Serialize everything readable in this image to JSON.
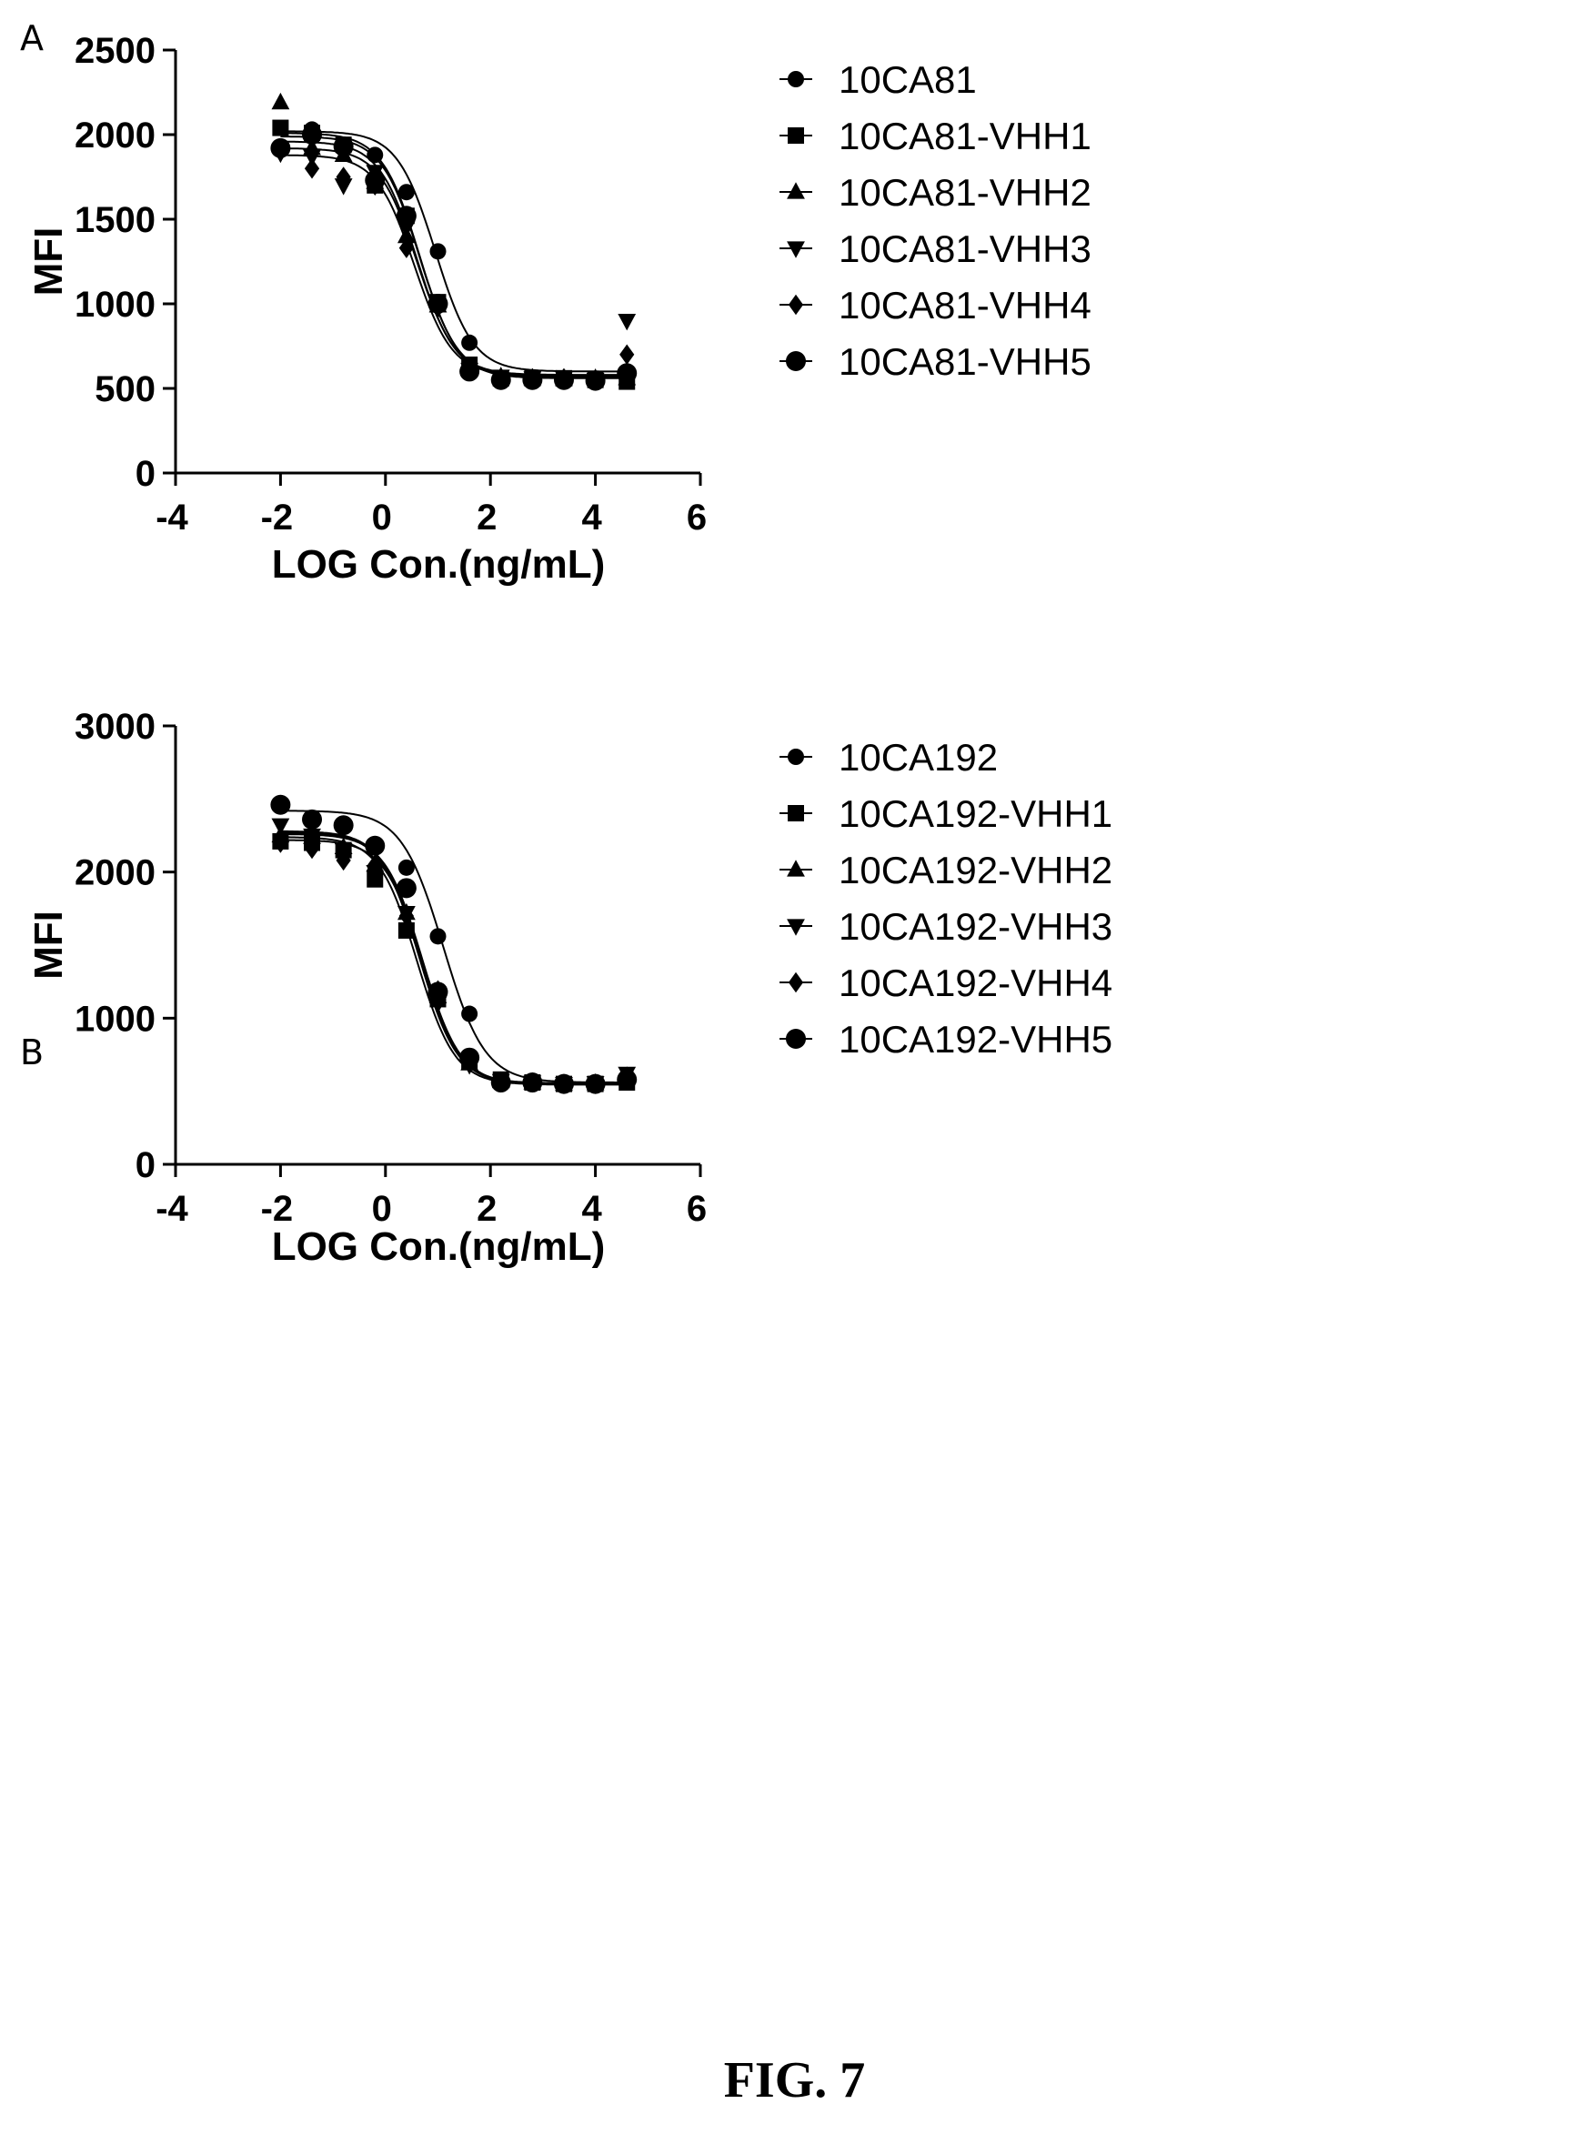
{
  "figure_caption": "FIG. 7",
  "chart_data": [
    {
      "panel": "A",
      "type": "scatter",
      "fit": "four-parameter logistic curves",
      "xlabel": "LOG Con.(ng/mL)",
      "ylabel": "MFI",
      "xlim": [
        -4,
        6
      ],
      "ylim": [
        0,
        2500
      ],
      "xticks": [
        "-4",
        "-2",
        "0",
        "2",
        "4",
        "6"
      ],
      "yticks": [
        "0",
        "500",
        "1000",
        "1500",
        "2000",
        "2500"
      ],
      "grid": false,
      "legend_position": "right",
      "x": [
        -2.0,
        -1.4,
        -0.8,
        -0.2,
        0.4,
        1.0,
        1.6,
        2.2,
        2.8,
        3.4,
        4.0,
        4.6
      ],
      "series": [
        {
          "name": "10CA81",
          "marker": "circle",
          "values": [
            1910,
            2030,
            1940,
            1880,
            1660,
            1310,
            770,
            560,
            555,
            550,
            545,
            580
          ],
          "fit": {
            "top": 2020,
            "bottom": 600,
            "ec50": 0.95,
            "hill": 1.2
          }
        },
        {
          "name": "10CA81-VHH1",
          "marker": "square",
          "values": [
            2040,
            2010,
            1940,
            1700,
            1520,
            1010,
            640,
            560,
            560,
            560,
            550,
            540
          ],
          "fit": {
            "top": 2010,
            "bottom": 560,
            "ec50": 0.65,
            "hill": 1.2
          }
        },
        {
          "name": "10CA81-VHH2",
          "marker": "triangle-up",
          "values": [
            2190,
            1920,
            1880,
            1720,
            1400,
            990,
            620,
            570,
            560,
            555,
            560,
            560
          ],
          "fit": {
            "top": 1960,
            "bottom": 570,
            "ec50": 0.6,
            "hill": 1.2
          }
        },
        {
          "name": "10CA81-VHH3",
          "marker": "triangle-down",
          "values": [
            1890,
            1870,
            1700,
            1780,
            1450,
            970,
            610,
            570,
            560,
            560,
            550,
            900
          ],
          "fit": {
            "top": 1920,
            "bottom": 580,
            "ec50": 0.6,
            "hill": 1.2
          }
        },
        {
          "name": "10CA81-VHH4",
          "marker": "diamond",
          "values": [
            1900,
            1800,
            1750,
            1700,
            1330,
            980,
            610,
            560,
            560,
            560,
            550,
            700
          ],
          "fit": {
            "top": 1880,
            "bottom": 575,
            "ec50": 0.55,
            "hill": 1.2
          }
        },
        {
          "name": "10CA81-VHH5",
          "marker": "circle",
          "values": [
            1920,
            2000,
            1930,
            1730,
            1520,
            1000,
            600,
            550,
            550,
            550,
            545,
            590
          ],
          "fit": {
            "top": 1990,
            "bottom": 565,
            "ec50": 0.65,
            "hill": 1.2
          }
        }
      ]
    },
    {
      "panel": "B",
      "type": "scatter",
      "fit": "four-parameter logistic curves",
      "xlabel": "LOG Con.(ng/mL)",
      "ylabel": "MFI",
      "xlim": [
        -4,
        6
      ],
      "ylim": [
        0,
        3000
      ],
      "xticks": [
        "-4",
        "-2",
        "0",
        "2",
        "4",
        "6"
      ],
      "yticks": [
        "0",
        "1000",
        "2000",
        "3000"
      ],
      "grid": false,
      "legend_position": "right",
      "x": [
        -2.0,
        -1.4,
        -0.8,
        -0.2,
        0.4,
        1.0,
        1.6,
        2.2,
        2.8,
        3.4,
        4.0,
        4.6
      ],
      "series": [
        {
          "name": "10CA192",
          "marker": "circle",
          "values": [
            2460,
            2360,
            2320,
            2180,
            2030,
            1560,
            1030,
            560,
            560,
            550,
            555,
            600
          ],
          "fit": {
            "top": 2420,
            "bottom": 560,
            "ec50": 1.1,
            "hill": 1.1
          }
        },
        {
          "name": "10CA192-VHH1",
          "marker": "square",
          "values": [
            2210,
            2200,
            2150,
            1950,
            1600,
            1130,
            700,
            580,
            560,
            550,
            550,
            560
          ],
          "fit": {
            "top": 2240,
            "bottom": 545,
            "ec50": 0.6,
            "hill": 1.2
          }
        },
        {
          "name": "10CA192-VHH2",
          "marker": "triangle-up",
          "values": [
            2250,
            2240,
            2170,
            2050,
            1720,
            1150,
            690,
            570,
            560,
            550,
            555,
            600
          ],
          "fit": {
            "top": 2270,
            "bottom": 550,
            "ec50": 0.65,
            "hill": 1.2
          }
        },
        {
          "name": "10CA192-VHH3",
          "marker": "triangle-down",
          "values": [
            2320,
            2250,
            2150,
            2000,
            1720,
            1100,
            680,
            570,
            560,
            550,
            555,
            620
          ],
          "fit": {
            "top": 2280,
            "bottom": 555,
            "ec50": 0.65,
            "hill": 1.2
          }
        },
        {
          "name": "10CA192-VHH4",
          "marker": "diamond",
          "values": [
            2200,
            2160,
            2080,
            2050,
            1700,
            1190,
            720,
            560,
            560,
            550,
            550,
            600
          ],
          "fit": {
            "top": 2220,
            "bottom": 550,
            "ec50": 0.7,
            "hill": 1.2
          }
        },
        {
          "name": "10CA192-VHH5",
          "marker": "circle",
          "values": [
            2460,
            2360,
            2320,
            2180,
            1890,
            1180,
            730,
            560,
            560,
            550,
            550,
            580
          ],
          "fit": {
            "top": 2260,
            "bottom": 550,
            "ec50": 0.7,
            "hill": 1.2
          }
        }
      ]
    }
  ]
}
